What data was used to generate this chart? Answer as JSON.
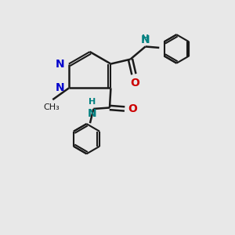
{
  "background_color": "#e8e8e8",
  "bond_color": "#1a1a1a",
  "N_color": "#0000cc",
  "O_color": "#cc0000",
  "NH_color": "#008080",
  "figsize": [
    3.0,
    3.0
  ],
  "dpi": 100,
  "xlim": [
    0,
    10
  ],
  "ylim": [
    0,
    10
  ]
}
